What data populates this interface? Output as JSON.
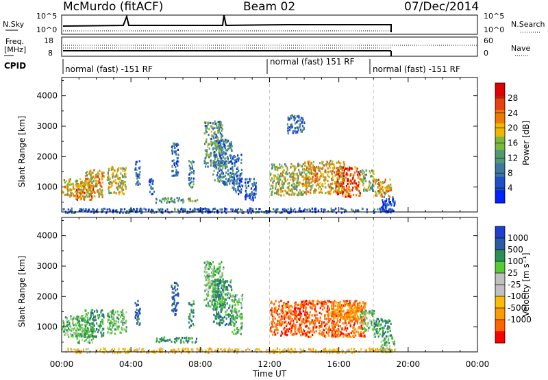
{
  "header": {
    "station": "McMurdo (fitACF)",
    "beam": "Beam 02",
    "date": "07/Dec/2014"
  },
  "noise_panel": {
    "left_label": "N.Sky",
    "left_ticks": [
      "10^5",
      "10^0"
    ],
    "right_ticks": [
      "10^5",
      "10^0"
    ],
    "right_label": "N.Search"
  },
  "freq_panel": {
    "left_label_top": "Freq.",
    "left_label_bottom": "[MHz]",
    "left_ticks": [
      "18",
      "8"
    ],
    "right_ticks": [
      "60",
      "0"
    ],
    "right_label": "Nave"
  },
  "cpid_panel": {
    "label": "CPID",
    "segments": [
      {
        "start": 0,
        "end": 12,
        "text": "normal (fast) -151 RF"
      },
      {
        "start": 12,
        "end": 18,
        "text": "normal (fast) 151 RF"
      },
      {
        "start": 18,
        "end": 24,
        "text": "normal (fast) -151 RF"
      }
    ]
  },
  "colors": {
    "power_scale": [
      "#0022ff",
      "#2050c8",
      "#3d78a0",
      "#4f9a73",
      "#7ab83e",
      "#f0b600",
      "#f07a00",
      "#e84010",
      "#e00000"
    ],
    "velocity_scale": [
      "#ff0000",
      "#ff6600",
      "#ff9a00",
      "#ffbb00",
      "#c0c0c0",
      "#c0c0c0",
      "#55cc33",
      "#2c8f55",
      "#2b5aa8",
      "#1f3fd0"
    ],
    "gridline": "#c8c8c8"
  },
  "chart_data": [
    {
      "type": "heatmap",
      "title": "",
      "xlabel": "Time UT",
      "ylabel": "Slant Range [km]",
      "xlim": [
        0,
        24
      ],
      "ylim": [
        180,
        4600
      ],
      "x_tick_labels": [
        "00:00",
        "04:00",
        "08:00",
        "12:00",
        "16:00",
        "20:00",
        "00:00"
      ],
      "y_ticks": [
        1000,
        2000,
        3000,
        4000
      ],
      "y_tick_labels": [
        "1000",
        "2000",
        "3000",
        "4000"
      ],
      "colorbar": {
        "label": "Power [dB]",
        "range": [
          0,
          32
        ],
        "tick_values": [
          4,
          8,
          12,
          16,
          20,
          24,
          28
        ],
        "tick_labels": [
          "4",
          "8",
          "12",
          "16",
          "20",
          "24",
          "28"
        ]
      },
      "mode_change_times": [
        12,
        18
      ],
      "scatter_regions": [
        {
          "t0": 0.0,
          "t1": 1.3,
          "r0": 700,
          "r1": 1300,
          "v": 18
        },
        {
          "t0": 0.8,
          "t1": 1.8,
          "r0": 600,
          "r1": 1200,
          "v": 24
        },
        {
          "t0": 1.3,
          "t1": 2.4,
          "r0": 700,
          "r1": 1600,
          "v": 20
        },
        {
          "t0": 2.6,
          "t1": 3.7,
          "r0": 800,
          "r1": 1700,
          "v": 18
        },
        {
          "t0": 4.2,
          "t1": 4.5,
          "r0": 1100,
          "r1": 1900,
          "v": 8
        },
        {
          "t0": 5.0,
          "t1": 5.3,
          "r0": 800,
          "r1": 1300,
          "v": 6
        },
        {
          "t0": 5.4,
          "t1": 7.8,
          "r0": 520,
          "r1": 680,
          "v": 12
        },
        {
          "t0": 6.3,
          "t1": 6.7,
          "r0": 1400,
          "r1": 2500,
          "v": 8
        },
        {
          "t0": 7.3,
          "t1": 7.6,
          "r0": 1000,
          "r1": 1900,
          "v": 10
        },
        {
          "t0": 8.2,
          "t1": 9.3,
          "r0": 1700,
          "r1": 3200,
          "v": 12
        },
        {
          "t0": 8.7,
          "t1": 9.8,
          "r0": 1100,
          "r1": 2600,
          "v": 10
        },
        {
          "t0": 9.8,
          "t1": 10.4,
          "r0": 800,
          "r1": 2100,
          "v": 7
        },
        {
          "t0": 10.5,
          "t1": 11.2,
          "r0": 600,
          "r1": 1300,
          "v": 6
        },
        {
          "t0": 12.0,
          "t1": 14.0,
          "r0": 750,
          "r1": 1800,
          "v": 16
        },
        {
          "t0": 13.0,
          "t1": 14.0,
          "r0": 2800,
          "r1": 3400,
          "v": 8
        },
        {
          "t0": 14.0,
          "t1": 16.3,
          "r0": 800,
          "r1": 1900,
          "v": 20
        },
        {
          "t0": 15.8,
          "t1": 17.2,
          "r0": 700,
          "r1": 1700,
          "v": 26
        },
        {
          "t0": 17.2,
          "t1": 18.0,
          "r0": 900,
          "r1": 1600,
          "v": 14
        },
        {
          "t0": 18.0,
          "t1": 19.0,
          "r0": 700,
          "r1": 1300,
          "v": 20
        },
        {
          "t0": 18.4,
          "t1": 19.2,
          "r0": 200,
          "r1": 700,
          "v": 4
        },
        {
          "t0": 0.0,
          "t1": 19.2,
          "r0": 180,
          "r1": 330,
          "v": 6
        }
      ]
    },
    {
      "type": "heatmap",
      "title": "",
      "xlabel": "Time UT",
      "ylabel": "Slant Range [km]",
      "xlim": [
        0,
        24
      ],
      "ylim": [
        180,
        4600
      ],
      "x_tick_labels": [
        "00:00",
        "04:00",
        "08:00",
        "12:00",
        "16:00",
        "20:00",
        "00:00"
      ],
      "y_ticks": [
        1000,
        2000,
        3000,
        4000
      ],
      "y_tick_labels": [
        "1000",
        "2000",
        "3000",
        "4000"
      ],
      "colorbar": {
        "label": "Velocity [m s⁻¹]",
        "tick_labels": [
          "1000",
          "500",
          "100",
          "25",
          "-25",
          "-100",
          "-500",
          "-1000"
        ]
      },
      "mode_change_times": [
        12,
        18
      ],
      "scatter_regions": [
        {
          "t0": 0.0,
          "t1": 1.3,
          "r0": 700,
          "r1": 1400,
          "v": 6
        },
        {
          "t0": 0.8,
          "t1": 1.8,
          "r0": 500,
          "r1": 1300,
          "v": 6
        },
        {
          "t0": 1.3,
          "t1": 2.4,
          "r0": 700,
          "r1": 1600,
          "v": 7
        },
        {
          "t0": 2.6,
          "t1": 3.7,
          "r0": 800,
          "r1": 1600,
          "v": 6
        },
        {
          "t0": 4.2,
          "t1": 4.5,
          "r0": 1100,
          "r1": 1900,
          "v": 8
        },
        {
          "t0": 5.4,
          "t1": 7.8,
          "r0": 520,
          "r1": 700,
          "v": 7
        },
        {
          "t0": 6.3,
          "t1": 6.7,
          "r0": 1400,
          "r1": 2500,
          "v": 8
        },
        {
          "t0": 7.3,
          "t1": 7.6,
          "r0": 1000,
          "r1": 1900,
          "v": 7
        },
        {
          "t0": 8.2,
          "t1": 9.3,
          "r0": 1700,
          "r1": 3200,
          "v": 6
        },
        {
          "t0": 8.7,
          "t1": 9.8,
          "r0": 1100,
          "r1": 2600,
          "v": 7
        },
        {
          "t0": 9.8,
          "t1": 10.4,
          "r0": 800,
          "r1": 2100,
          "v": 6
        },
        {
          "t0": 12.0,
          "t1": 14.0,
          "r0": 750,
          "r1": 1900,
          "v": 1
        },
        {
          "t0": 14.0,
          "t1": 17.5,
          "r0": 700,
          "r1": 1900,
          "v": 1
        },
        {
          "t0": 15.5,
          "t1": 17.5,
          "r0": 1300,
          "r1": 1850,
          "v": 2
        },
        {
          "t0": 17.2,
          "t1": 18.0,
          "r0": 900,
          "r1": 1600,
          "v": 6
        },
        {
          "t0": 18.0,
          "t1": 19.0,
          "r0": 700,
          "r1": 1300,
          "v": 7
        },
        {
          "t0": 18.4,
          "t1": 19.2,
          "r0": 200,
          "r1": 700,
          "v": 6
        },
        {
          "t0": 0.0,
          "t1": 19.2,
          "r0": 180,
          "r1": 330,
          "v": 3
        }
      ]
    }
  ]
}
